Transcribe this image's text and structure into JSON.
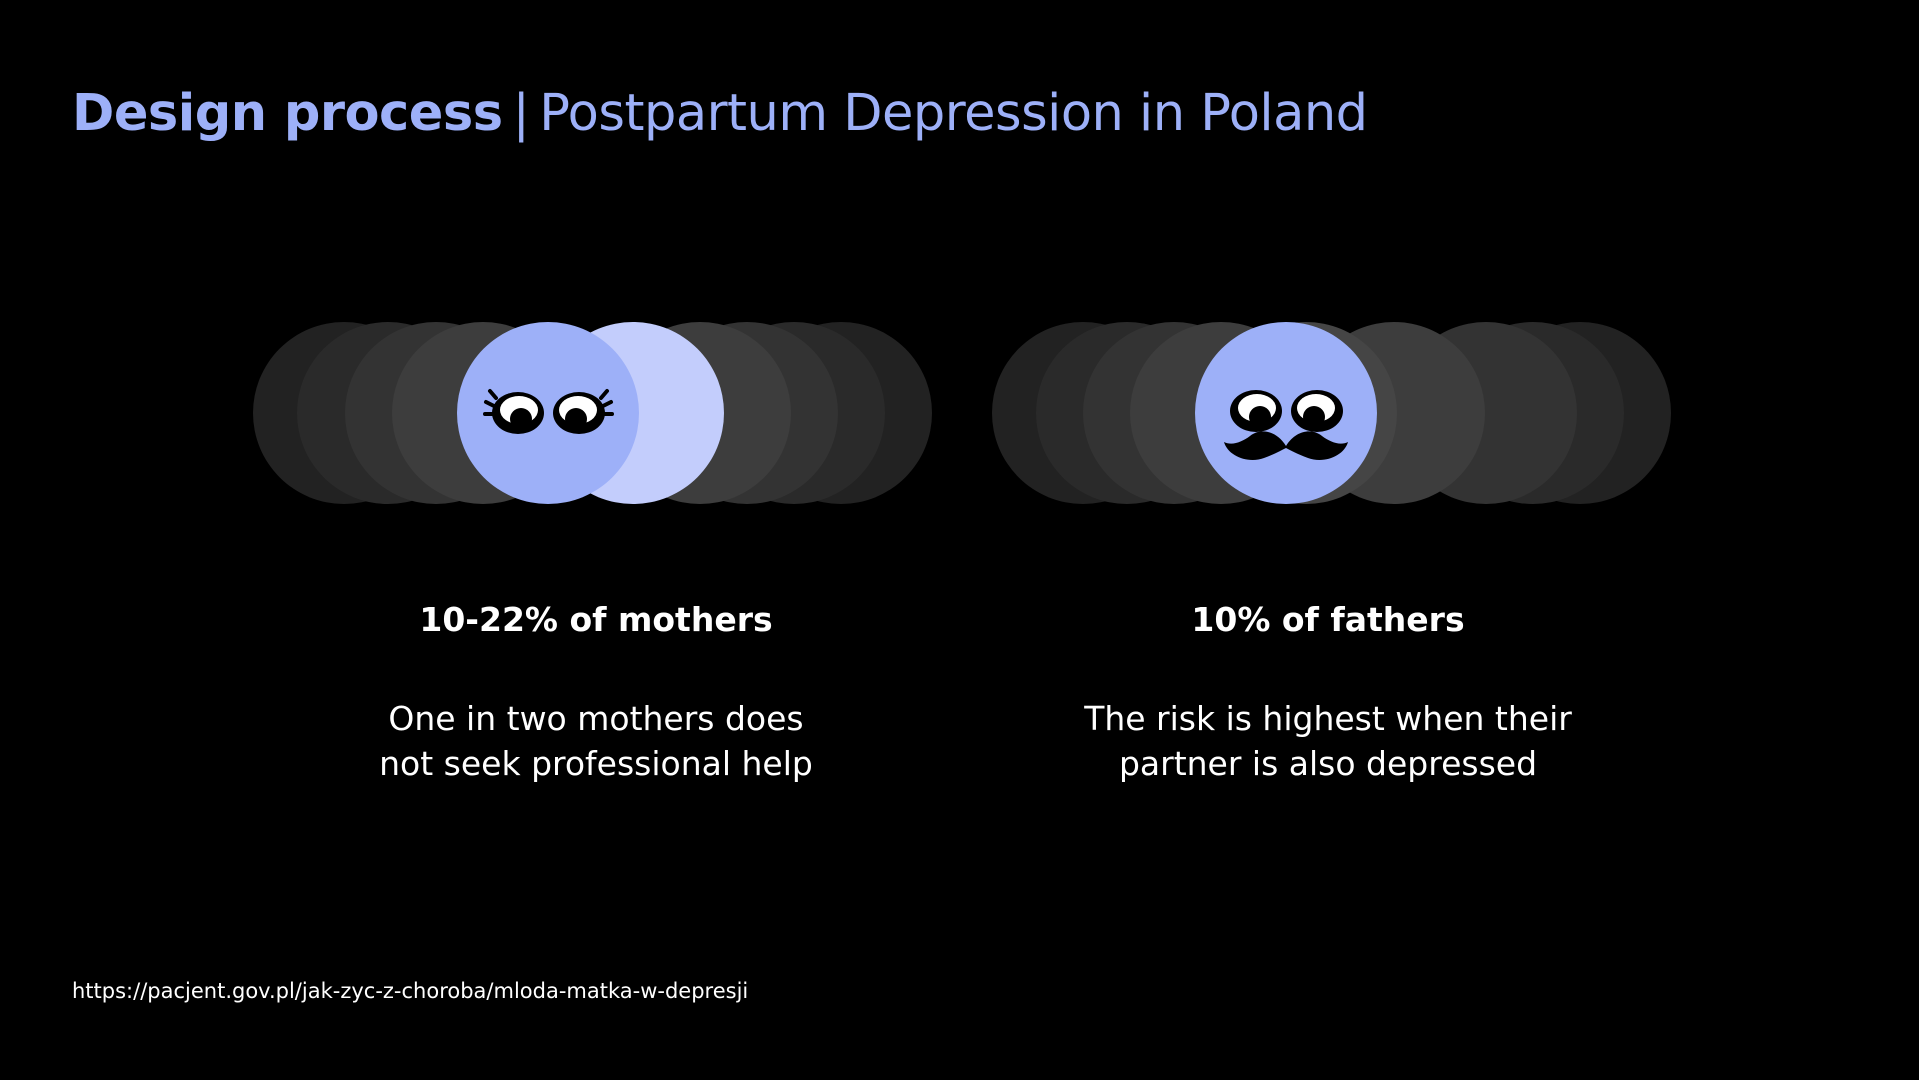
{
  "title": {
    "bold": "Design process",
    "separator": "|",
    "rest": "Postpartum Depression in Poland"
  },
  "mothers": {
    "stat": "10-22% of mothers",
    "desc_line1": "One in two mothers does",
    "desc_line2": "not seek professional help"
  },
  "fathers": {
    "stat": "10% of fathers",
    "desc_line1": "The risk is highest when their",
    "desc_line2": "partner is also depressed"
  },
  "source": "https://pacjent.gov.pl/jak-zyc-z-choroba/mloda-matka-w-depresji",
  "colors": {
    "background": "#000000",
    "accent": "#9db0f8",
    "accent_light": "#c3cdfc",
    "shadow_dark": "#222222",
    "shadow_mid": "#2f2f2f",
    "shadow_light": "#3d3d3d",
    "text": "#ffffff"
  },
  "icons": {
    "mother": "woman-face-icon",
    "father": "man-face-mustache-icon"
  }
}
